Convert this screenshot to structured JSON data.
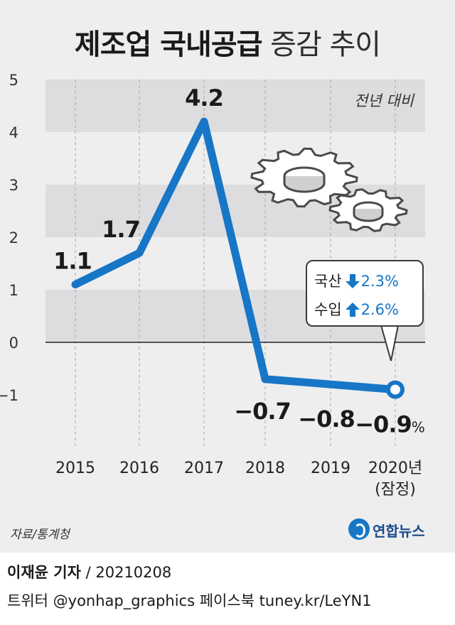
{
  "title": {
    "bold": "제조업 국내공급",
    "light": "증감 추이"
  },
  "chart_data": {
    "type": "line",
    "title": "제조업 국내공급 증감 추이",
    "unit_note": "전년 대비",
    "categories": [
      "2015",
      "2016",
      "2017",
      "2018",
      "2019",
      "2020년"
    ],
    "category_sublabels": [
      "",
      "",
      "",
      "",
      "",
      "(잠정)"
    ],
    "values": [
      1.1,
      1.7,
      4.2,
      -0.7,
      -0.8,
      -0.9
    ],
    "value_labels": [
      "1.1",
      "1.7",
      "4.2",
      "−0.7",
      "−0.8",
      "−0.9"
    ],
    "last_value_suffix": "%",
    "yticks": [
      5,
      4,
      3,
      2,
      1,
      0,
      -1
    ],
    "ytick_labels": [
      "5",
      "4",
      "3",
      "2",
      "1",
      "0",
      "−1"
    ],
    "ylim": [
      -1.8,
      5
    ],
    "line_color": "#1776c6",
    "band_color": "#dddddf",
    "grid": "dashed vertical"
  },
  "callout": {
    "row1": {
      "label": "국산",
      "direction": "down",
      "value": "2.3%"
    },
    "row2": {
      "label": "수입",
      "direction": "up",
      "value": "2.6%"
    }
  },
  "illustration": {
    "icon": "gears-icon"
  },
  "footer": {
    "source": "자료/통계청",
    "logo": "연합뉴스",
    "reporter": "이재윤 기자",
    "date": "/ 20210208",
    "social": "트위터 @yonhap_graphics  페이스북 tuney.kr/LeYN1"
  }
}
